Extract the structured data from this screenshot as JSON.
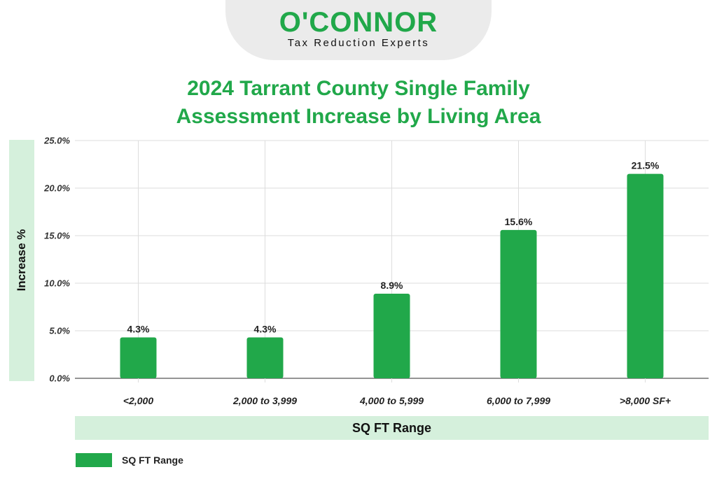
{
  "logo": {
    "name": "O'CONNOR",
    "tagline": "Tax Reduction Experts"
  },
  "colors": {
    "bar": "#21a84a",
    "title": "#21a84a",
    "label_band": "#d5f0dc",
    "grid": "#dddddd"
  },
  "chart_data": {
    "type": "bar",
    "title_line1": "2024 Tarrant County Single Family",
    "title_line2": "Assessment Increase by Living Area",
    "xlabel": "SQ FT Range",
    "ylabel": "Increase %",
    "categories": [
      "<2,000",
      "2,000 to 3,999",
      "4,000 to 5,999",
      "6,000 to 7,999",
      ">8,000 SF+"
    ],
    "series": [
      {
        "name": "SQ FT Range",
        "values": [
          4.3,
          4.3,
          8.9,
          15.6,
          21.5
        ]
      }
    ],
    "data_labels": [
      "4.3%",
      "4.3%",
      "8.9%",
      "15.6%",
      "21.5%"
    ],
    "yticks": [
      0,
      5,
      10,
      15,
      20,
      25
    ],
    "ytick_labels": [
      "0.0%",
      "5.0%",
      "10.0%",
      "15.0%",
      "20.0%",
      "25.0%"
    ],
    "ylim": [
      0,
      25
    ],
    "grid": true,
    "legend": "bottom-left"
  }
}
